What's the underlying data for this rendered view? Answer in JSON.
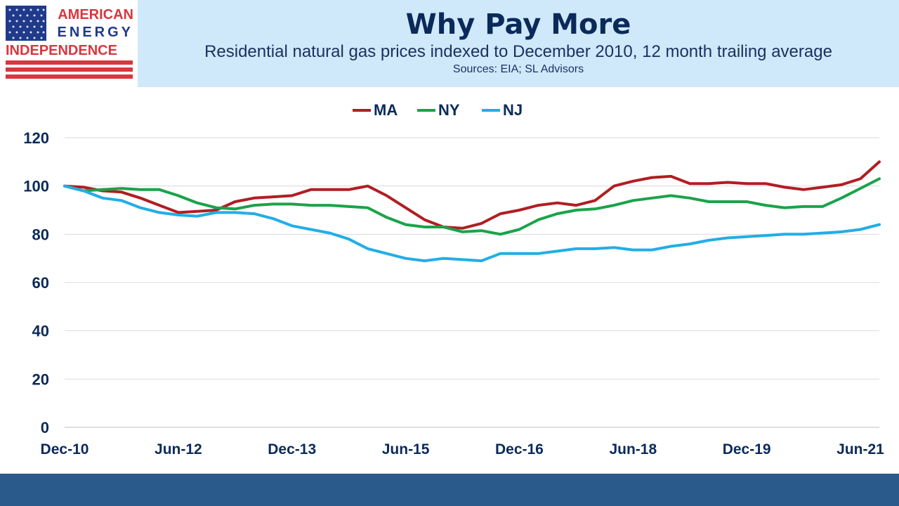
{
  "logo": {
    "line1": "AMERICAN",
    "line2": "ENERGY",
    "line3": "INDEPENDENCE",
    "colors": {
      "blue": "#1f3a8a",
      "red": "#d9363e"
    }
  },
  "header": {
    "title": "Why Pay More",
    "subtitle": "Residential natural gas prices indexed to December 2010, 12 month trailing average",
    "sources": "Sources: EIA; SL Advisors"
  },
  "chart_data": {
    "type": "line",
    "title": "",
    "xlabel": "",
    "ylabel": "",
    "ylim": [
      0,
      120
    ],
    "yticks": [
      0,
      20,
      40,
      60,
      80,
      100,
      120
    ],
    "x_tick_labels": [
      "Dec-10",
      "Jun-12",
      "Dec-13",
      "Jun-15",
      "Dec-16",
      "Jun-18",
      "Dec-19",
      "Jun-21"
    ],
    "legend_position": "top-center",
    "grid": "horizontal",
    "x": [
      "Dec-10",
      "Mar-11",
      "Jun-11",
      "Sep-11",
      "Dec-11",
      "Mar-12",
      "Jun-12",
      "Sep-12",
      "Dec-12",
      "Mar-13",
      "Jun-13",
      "Sep-13",
      "Dec-13",
      "Mar-14",
      "Jun-14",
      "Sep-14",
      "Dec-14",
      "Mar-15",
      "Jun-15",
      "Sep-15",
      "Dec-15",
      "Mar-16",
      "Jun-16",
      "Sep-16",
      "Dec-16",
      "Mar-17",
      "Jun-17",
      "Sep-17",
      "Dec-17",
      "Mar-18",
      "Jun-18",
      "Sep-18",
      "Dec-18",
      "Mar-19",
      "Jun-19",
      "Sep-19",
      "Dec-19",
      "Mar-20",
      "Jun-20",
      "Sep-20",
      "Dec-20",
      "Mar-21",
      "Jun-21",
      "Sep-21"
    ],
    "series": [
      {
        "name": "MA",
        "color": "#b01e23",
        "values": [
          100,
          99.5,
          98,
          97.5,
          95,
          92,
          89,
          89.5,
          90,
          93.5,
          95,
          95.5,
          96,
          98.5,
          98.5,
          98.5,
          100,
          96,
          91,
          86,
          83,
          82.5,
          84.5,
          88.5,
          90,
          92,
          93,
          92,
          94,
          100,
          102,
          103.5,
          104,
          101,
          101,
          101.5,
          101,
          101,
          99.5,
          98.5,
          99.5,
          100.5,
          103,
          110
        ]
      },
      {
        "name": "NY",
        "color": "#1aa34a",
        "values": [
          100,
          98,
          98.5,
          99,
          98.5,
          98.5,
          96,
          93,
          91,
          90.5,
          92,
          92.5,
          92.5,
          92,
          92,
          91.5,
          91,
          87,
          84,
          83,
          83,
          81,
          81.5,
          80,
          82,
          86,
          88.5,
          90,
          90.5,
          92,
          94,
          95,
          96,
          95,
          93.5,
          93.5,
          93.5,
          92,
          91,
          91.5,
          91.5,
          95,
          99,
          103
        ]
      },
      {
        "name": "NJ",
        "color": "#22aee6",
        "values": [
          100,
          98,
          95,
          94,
          91,
          89,
          88,
          87.5,
          89,
          89,
          88.5,
          86.5,
          83.5,
          82,
          80.5,
          78,
          74,
          72,
          70,
          69,
          70,
          69.5,
          69,
          72,
          72,
          72,
          73,
          74,
          74,
          74.5,
          73.5,
          73.5,
          75,
          76,
          77.5,
          78.5,
          79,
          79.5,
          80,
          80,
          80.5,
          81,
          82,
          84
        ]
      }
    ]
  }
}
